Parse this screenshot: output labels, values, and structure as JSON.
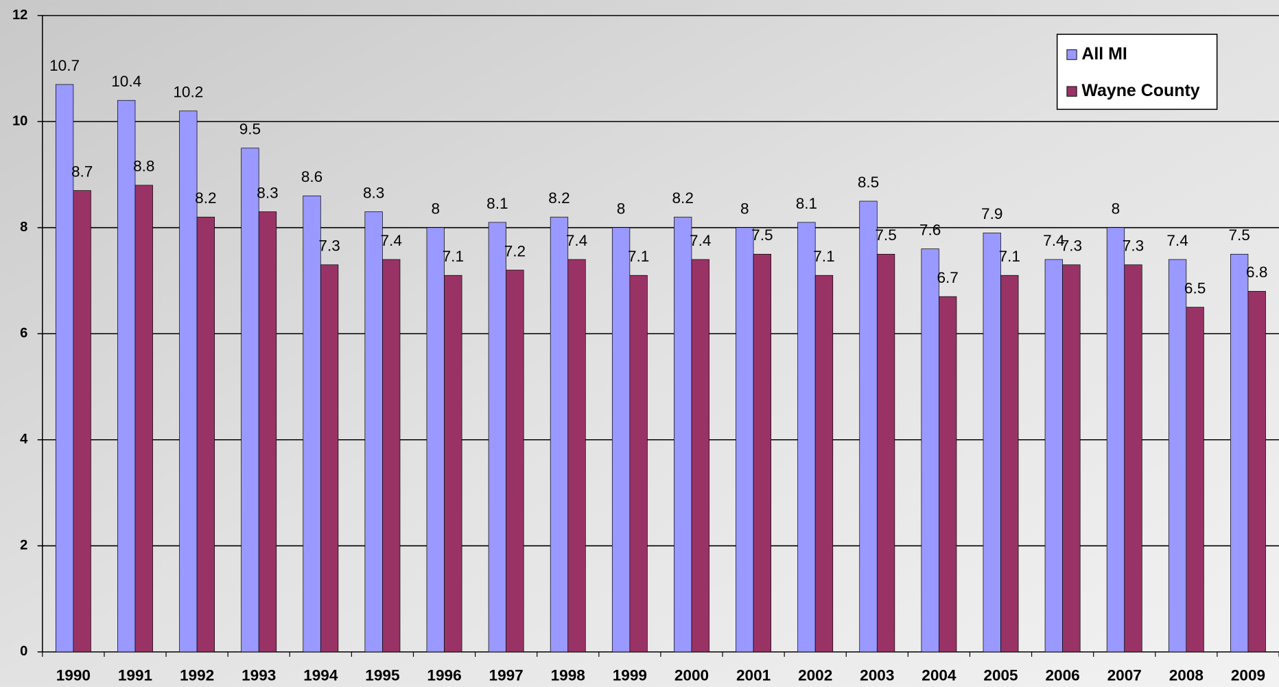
{
  "chart_data": {
    "type": "bar",
    "categories": [
      "1990",
      "1991",
      "1992",
      "1993",
      "1994",
      "1995",
      "1996",
      "1997",
      "1998",
      "1999",
      "2000",
      "2001",
      "2002",
      "2003",
      "2004",
      "2005",
      "2006",
      "2007",
      "2008",
      "2009"
    ],
    "series": [
      {
        "name": "All MI",
        "color": "#9999ff",
        "values": [
          10.7,
          10.4,
          10.2,
          9.5,
          8.6,
          8.3,
          8,
          8.1,
          8.2,
          8,
          8.2,
          8,
          8.1,
          8.5,
          7.6,
          7.9,
          7.4,
          8,
          7.4,
          7.5
        ]
      },
      {
        "name": "Wayne County",
        "color": "#993366",
        "values": [
          8.7,
          8.8,
          8.2,
          8.3,
          7.3,
          7.4,
          7.1,
          7.2,
          7.4,
          7.1,
          7.4,
          7.5,
          7.1,
          7.5,
          6.7,
          7.1,
          7.3,
          7.3,
          6.5,
          6.8
        ]
      }
    ],
    "ylim": [
      0,
      12
    ],
    "yticks": [
      0,
      2,
      4,
      6,
      8,
      10,
      12
    ],
    "grid": true,
    "legend": "top-right"
  }
}
